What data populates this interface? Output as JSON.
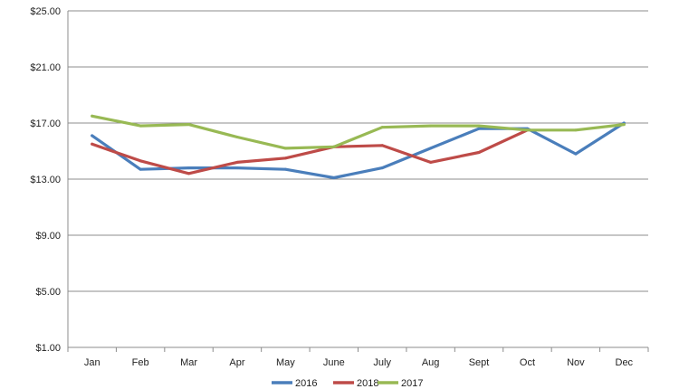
{
  "chart_data": {
    "type": "line",
    "categories": [
      "Jan",
      "Feb",
      "Mar",
      "Apr",
      "May",
      "June",
      "July",
      "Aug",
      "Sept",
      "Oct",
      "Nov",
      "Dec"
    ],
    "ylim": [
      1,
      25
    ],
    "yticks": [
      1,
      5,
      9,
      13,
      17,
      21,
      25
    ],
    "ytick_labels": [
      "$1.00",
      "$5.00",
      "$9.00",
      "$13.00",
      "$17.00",
      "$21.00",
      "$25.00"
    ],
    "grid": true,
    "legend_position": "bottom-center",
    "series": [
      {
        "name": "2016",
        "color": "#4a7ebb",
        "values": [
          16.1,
          13.7,
          13.8,
          13.8,
          13.7,
          13.1,
          13.8,
          15.2,
          16.6,
          16.6,
          14.8,
          17.0
        ]
      },
      {
        "name": "2018",
        "color": "#be4b48",
        "values": [
          15.5,
          14.3,
          13.4,
          14.2,
          14.5,
          15.3,
          15.4,
          14.2,
          14.9,
          16.5,
          null,
          null
        ]
      },
      {
        "name": "2017",
        "color": "#98b954",
        "values": [
          17.5,
          16.8,
          16.9,
          16.0,
          15.2,
          15.3,
          16.7,
          16.8,
          16.8,
          16.5,
          16.5,
          16.9
        ]
      }
    ]
  }
}
